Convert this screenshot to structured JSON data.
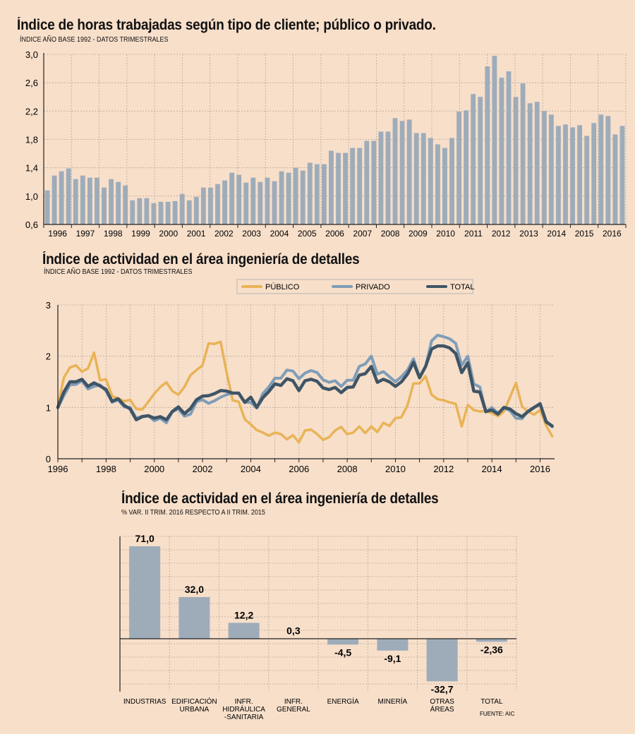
{
  "colors": {
    "background": "#f7dfca",
    "bar": "#9eacba",
    "publico": "#e9b356",
    "privado": "#7f9db8",
    "total": "#3f5566",
    "grid": "#b9a99a",
    "axis": "#222222"
  },
  "chart_data": [
    {
      "type": "bar",
      "title": "Índice de horas trabajadas según tipo de cliente; público o privado.",
      "subtitle": "ÍNDICE AÑO BASE 1992 - DATOS TRIMESTRALES",
      "ylim": [
        0.6,
        3.0
      ],
      "yticks": [
        "0,6",
        "1,0",
        "1,4",
        "1,8",
        "2,2",
        "2,6",
        "3,0"
      ],
      "year_labels": [
        "1996",
        "1997",
        "1998",
        "1999",
        "2000",
        "2001",
        "2002",
        "2003",
        "2004",
        "2005",
        "2006",
        "2007",
        "2008",
        "2009",
        "2010",
        "2011",
        "2012",
        "2013",
        "2014",
        "2015",
        "2016"
      ],
      "values": [
        1.08,
        1.29,
        1.35,
        1.39,
        1.24,
        1.29,
        1.26,
        1.26,
        1.12,
        1.24,
        1.2,
        1.15,
        0.94,
        0.97,
        0.97,
        0.9,
        0.92,
        0.92,
        0.93,
        1.03,
        0.94,
        0.99,
        1.12,
        1.12,
        1.17,
        1.22,
        1.33,
        1.3,
        1.19,
        1.26,
        1.2,
        1.26,
        1.21,
        1.35,
        1.33,
        1.4,
        1.36,
        1.47,
        1.45,
        1.45,
        1.64,
        1.61,
        1.61,
        1.68,
        1.68,
        1.78,
        1.78,
        1.91,
        1.91,
        2.1,
        2.06,
        2.08,
        1.89,
        1.89,
        1.82,
        1.73,
        1.68,
        1.82,
        2.19,
        2.21,
        2.44,
        2.4,
        2.83,
        2.98,
        2.67,
        2.76,
        2.4,
        2.59,
        2.31,
        2.33,
        2.2,
        2.15,
        1.99,
        2.01,
        1.97,
        2.0,
        1.85,
        2.03,
        2.15,
        2.13,
        1.87,
        1.99
      ]
    },
    {
      "type": "line",
      "title": "Índice de actividad en el área ingeniería de detalles",
      "subtitle": "ÍNDICE AÑO BASE 1992 - DATOS TRIMESTRALES",
      "ylim": [
        0,
        3
      ],
      "yticks": [
        "0",
        "1",
        "2",
        "3"
      ],
      "x_start": 1996.0,
      "x_step": 0.25,
      "xticks": [
        "1996",
        "1998",
        "2000",
        "2002",
        "2004",
        "2006",
        "2008",
        "2010",
        "2012",
        "2014",
        "2016"
      ],
      "series": [
        {
          "name": "PÚBLICO",
          "values": [
            1.02,
            1.58,
            1.78,
            1.82,
            1.7,
            1.76,
            2.07,
            1.53,
            1.55,
            1.22,
            1.18,
            1.12,
            1.15,
            0.97,
            0.96,
            1.11,
            1.27,
            1.4,
            1.49,
            1.32,
            1.25,
            1.4,
            1.63,
            1.73,
            1.82,
            2.25,
            2.24,
            2.28,
            1.68,
            1.14,
            1.11,
            0.77,
            0.67,
            0.56,
            0.51,
            0.45,
            0.51,
            0.48,
            0.38,
            0.46,
            0.32,
            0.55,
            0.57,
            0.48,
            0.37,
            0.42,
            0.55,
            0.62,
            0.48,
            0.51,
            0.63,
            0.5,
            0.63,
            0.52,
            0.7,
            0.64,
            0.79,
            0.81,
            1.04,
            1.47,
            1.47,
            1.61,
            1.25,
            1.16,
            1.14,
            1.1,
            1.07,
            0.63,
            1.05,
            0.95,
            0.92,
            0.93,
            0.89,
            0.83,
            0.92,
            1.2,
            1.48,
            1.02,
            0.92,
            0.86,
            0.95,
            0.65,
            0.44
          ]
        },
        {
          "name": "PRIVADO",
          "values": [
            1.0,
            1.23,
            1.44,
            1.45,
            1.52,
            1.36,
            1.41,
            1.44,
            1.32,
            1.1,
            1.15,
            1.01,
            1.0,
            0.79,
            0.83,
            0.84,
            0.74,
            0.79,
            0.7,
            0.92,
            0.97,
            0.83,
            0.87,
            1.11,
            1.15,
            1.08,
            1.13,
            1.2,
            1.25,
            1.28,
            1.28,
            1.1,
            1.1,
            0.99,
            1.27,
            1.4,
            1.57,
            1.57,
            1.73,
            1.71,
            1.56,
            1.67,
            1.72,
            1.68,
            1.54,
            1.49,
            1.52,
            1.41,
            1.53,
            1.53,
            1.8,
            1.85,
            2.0,
            1.65,
            1.7,
            1.6,
            1.5,
            1.6,
            1.73,
            1.95,
            1.58,
            1.8,
            2.3,
            2.41,
            2.38,
            2.34,
            2.25,
            1.82,
            2.0,
            1.46,
            1.4,
            0.91,
            1.0,
            0.89,
            0.99,
            0.94,
            0.79,
            0.78,
            0.93,
            1.0,
            1.08,
            0.74,
            0.62
          ]
        },
        {
          "name": "TOTAL",
          "values": [
            1.0,
            1.3,
            1.5,
            1.5,
            1.55,
            1.41,
            1.48,
            1.42,
            1.35,
            1.12,
            1.17,
            1.04,
            0.97,
            0.76,
            0.82,
            0.84,
            0.79,
            0.82,
            0.76,
            0.92,
            1.01,
            0.88,
            0.98,
            1.15,
            1.22,
            1.23,
            1.27,
            1.33,
            1.32,
            1.28,
            1.28,
            1.1,
            1.2,
            1.0,
            1.19,
            1.31,
            1.46,
            1.43,
            1.56,
            1.52,
            1.33,
            1.52,
            1.55,
            1.51,
            1.38,
            1.35,
            1.39,
            1.29,
            1.39,
            1.4,
            1.63,
            1.66,
            1.8,
            1.49,
            1.55,
            1.5,
            1.41,
            1.5,
            1.65,
            1.88,
            1.58,
            1.8,
            2.14,
            2.2,
            2.2,
            2.16,
            2.05,
            1.68,
            1.87,
            1.32,
            1.3,
            0.92,
            0.95,
            0.87,
            1.0,
            0.97,
            0.88,
            0.82,
            0.92,
            1.0,
            1.07,
            0.72,
            0.64
          ]
        }
      ]
    },
    {
      "type": "bar",
      "title": "Índice de actividad en el área ingeniería de detalles",
      "subtitle": "% VAR. II TRIM. 2016 RESPECTO A II TRIM. 2015",
      "ylim": [
        -45,
        80
      ],
      "categories": [
        {
          "lines": [
            "INDUSTRIAS"
          ],
          "value": 71.0,
          "value_label": "71,0"
        },
        {
          "lines": [
            "EDIFICACIÓN",
            "URBANA"
          ],
          "value": 32.0,
          "value_label": "32,0"
        },
        {
          "lines": [
            "INFR.",
            "HIDRÁULICA",
            "-SANITARIA"
          ],
          "value": 12.2,
          "value_label": "12,2"
        },
        {
          "lines": [
            "INFR.",
            "GENERAL"
          ],
          "value": 0.3,
          "value_label": "0,3"
        },
        {
          "lines": [
            "ENERGÍA"
          ],
          "value": -4.5,
          "value_label": "-4,5"
        },
        {
          "lines": [
            "MINERÍA"
          ],
          "value": -9.1,
          "value_label": "-9,1"
        },
        {
          "lines": [
            "OTRAS",
            "ÁREAS"
          ],
          "value": -32.7,
          "value_label": "-32,7"
        },
        {
          "lines": [
            "TOTAL"
          ],
          "value": -2.36,
          "value_label": "-2,36"
        }
      ],
      "source": "FUENTE: AIC"
    }
  ]
}
